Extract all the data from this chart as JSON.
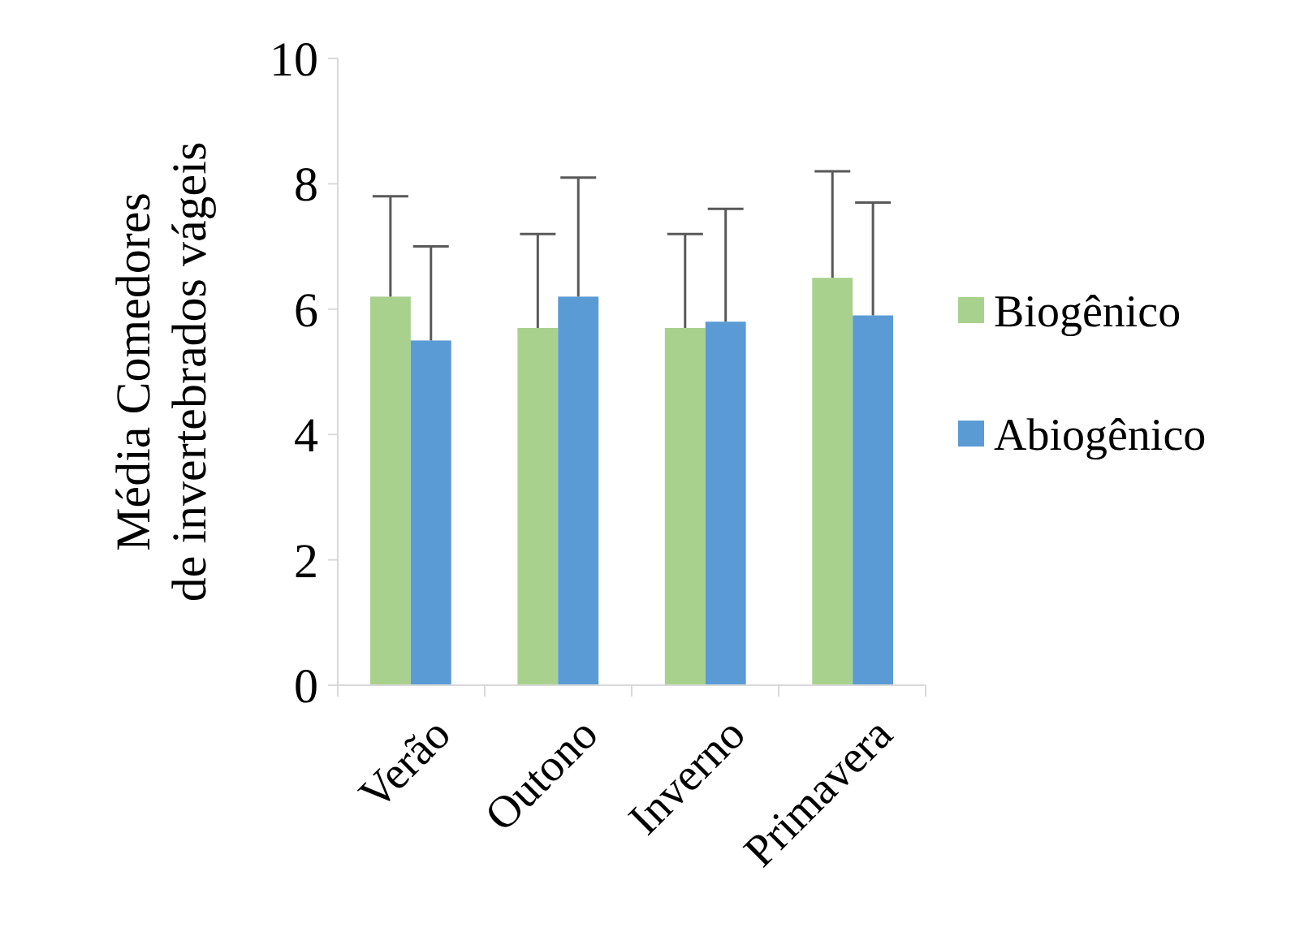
{
  "chart_data": {
    "type": "bar",
    "ylabel": "Média Comedores de invertebrados vágeis",
    "categories": [
      "Verão",
      "Outono",
      "Inverno",
      "Primavera"
    ],
    "series": [
      {
        "name": "Biogênico",
        "color": "#a9d18e",
        "values": [
          6.2,
          5.7,
          5.7,
          6.5
        ],
        "errors": [
          [
            6.2,
            7.8
          ],
          [
            5.7,
            7.2
          ],
          [
            5.7,
            7.2
          ],
          [
            6.5,
            8.2
          ]
        ]
      },
      {
        "name": "Abiogênico",
        "color": "#5b9bd5",
        "values": [
          5.5,
          6.2,
          5.8,
          5.9
        ],
        "errors": [
          [
            5.5,
            7.0
          ],
          [
            6.2,
            8.1
          ],
          [
            5.8,
            7.6
          ],
          [
            5.9,
            7.7
          ]
        ]
      }
    ],
    "ylim": [
      0,
      10
    ],
    "yticks": [
      0,
      2,
      4,
      6,
      8,
      10
    ],
    "grid": false,
    "legend": "right"
  }
}
